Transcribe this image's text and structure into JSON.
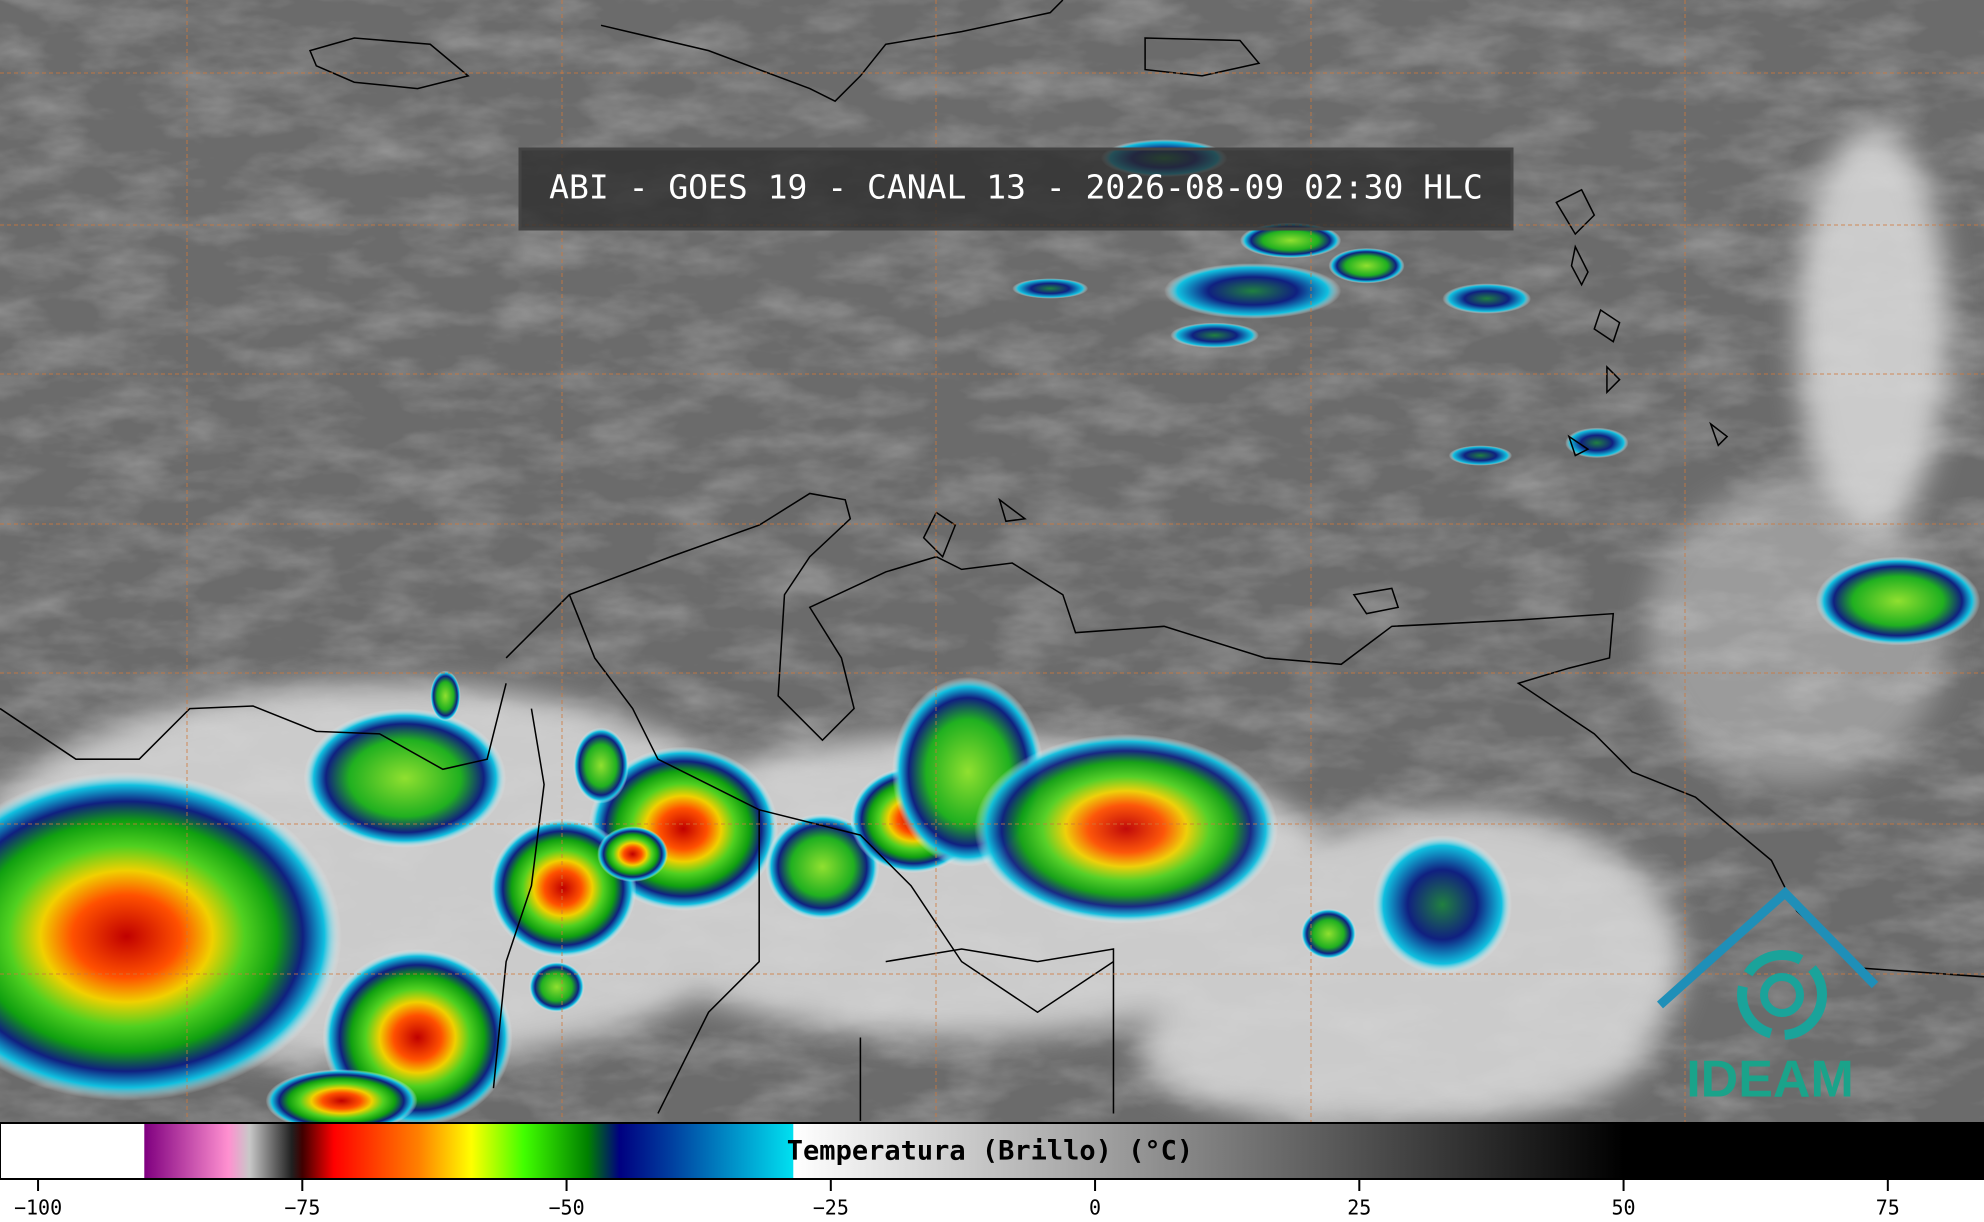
{
  "title": "ABI - GOES 19 - CANAL 13 - 2026-08-09 02:30 HLC",
  "logo": "IDEAM",
  "colorbar": {
    "label": "Temperatura (Brillo) (°C)",
    "range": [
      -103.6,
      84.1
    ],
    "ticks": [
      {
        "value": -100,
        "label": "−100"
      },
      {
        "value": -75,
        "label": "−75"
      },
      {
        "value": -50,
        "label": "−50"
      },
      {
        "value": -25,
        "label": "−25"
      },
      0,
      25,
      50,
      75
    ],
    "stops": [
      {
        "value": -90,
        "color": "#ffffff"
      },
      {
        "value": -89.9,
        "color": "#800080"
      },
      {
        "value": -82,
        "color": "#ff90d0"
      },
      {
        "value": -80,
        "color": "#c8c8c8"
      },
      {
        "value": -76,
        "color": "#202020"
      },
      {
        "value": -75,
        "color": "#400000"
      },
      {
        "value": -72,
        "color": "#ff0000"
      },
      {
        "value": -64,
        "color": "#ff8000"
      },
      {
        "value": -59,
        "color": "#ffff00"
      },
      {
        "value": -54,
        "color": "#40ff00"
      },
      {
        "value": -48,
        "color": "#008000"
      },
      {
        "value": -45,
        "color": "#000080"
      },
      {
        "value": -40,
        "color": "#0040a0"
      },
      {
        "value": -28.6,
        "color": "#00e0f0"
      },
      {
        "value": -28.5,
        "color": "#ffffff"
      },
      {
        "value": 50,
        "color": "#000000"
      }
    ]
  }
}
